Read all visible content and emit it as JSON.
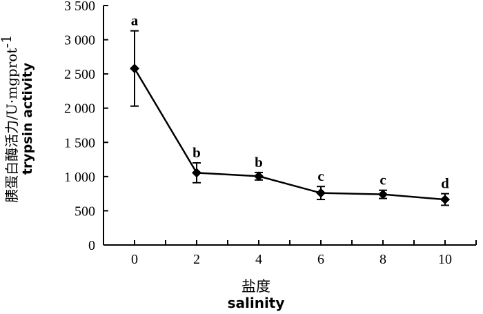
{
  "chart_data": {
    "type": "line",
    "title": "",
    "xlabel_cn": "盐度",
    "xlabel_en": "salinity",
    "ylabel_cn": "胰蛋白酶活力/U·mgprot",
    "ylabel_sup": "-1",
    "ylabel_en": "trypsin activity",
    "x": [
      0,
      2,
      4,
      6,
      8,
      10
    ],
    "x_tick_labels": [
      "0",
      "2",
      "4",
      "6",
      "8",
      "10"
    ],
    "y_tick_labels": [
      "0",
      "500",
      "1 000",
      "1 500",
      "2 000",
      "2 500",
      "3 000",
      "3 500"
    ],
    "y_ticks": [
      0,
      500,
      1000,
      1500,
      2000,
      2500,
      3000,
      3500
    ],
    "ylim": [
      0,
      3500
    ],
    "xlim": [
      -1,
      11
    ],
    "grid": false,
    "series": [
      {
        "values": [
          2580,
          1055,
          1005,
          760,
          740,
          665
        ],
        "errors": [
          550,
          145,
          55,
          95,
          60,
          85
        ],
        "significance": [
          "a",
          "b",
          "b",
          "c",
          "c",
          "d"
        ],
        "marker": "diamond",
        "color": "#000000"
      }
    ]
  }
}
